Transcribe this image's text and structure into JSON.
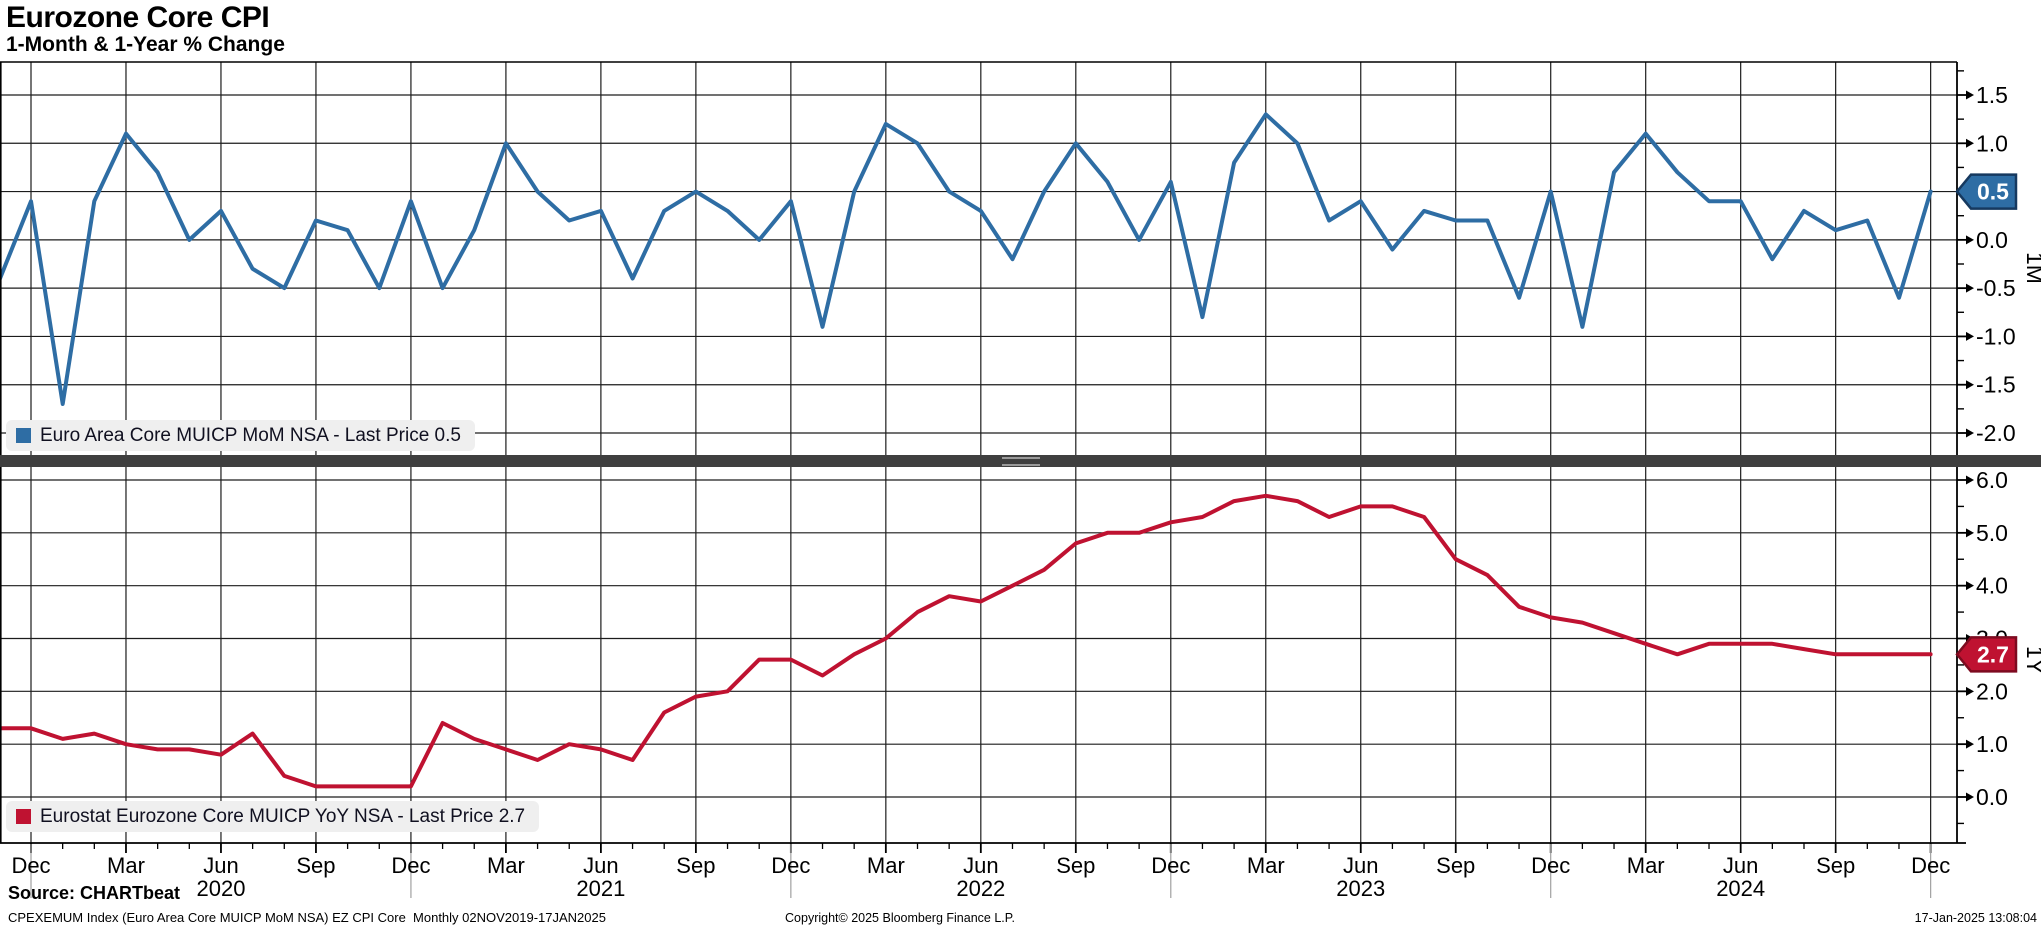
{
  "header": {
    "title": "Eurozone Core CPI",
    "subtitle": "1-Month & 1-Year % Change"
  },
  "colors": {
    "blue_line": "#2e6da4",
    "blue_tag_border": "#16395f",
    "red_line": "#bf1231",
    "red_tag_border": "#7d0b20",
    "grid": "#1c1c1c",
    "axis": "#000000",
    "legend_bg": "#efefef",
    "separator": "#3f3f3f",
    "separator_grip": "#9a9a9a",
    "year_divider": "#a0a0a0",
    "tag_text": "#ffffff"
  },
  "panels": {
    "top": {
      "legend": "Euro Area Core MUICP MoM NSA - Last Price 0.5",
      "axis_label": "1M",
      "last_price_tag": "0.5",
      "ytick_labels": [
        "1.5",
        "1.0",
        "0.5",
        "0.0",
        "-0.5",
        "-1.0",
        "-1.5",
        "-2.0"
      ]
    },
    "bottom": {
      "legend": "Eurostat Eurozone Core MUICP YoY NSA - Last Price 2.7",
      "axis_label": "1Y",
      "last_price_tag": "2.7",
      "ytick_labels": [
        "6.0",
        "5.0",
        "4.0",
        "3.0",
        "2.0",
        "1.0",
        "0.0"
      ]
    }
  },
  "footer": {
    "source": "Source: CHARTbeat",
    "left": "CPEXEMUM Index (Euro Area Core MUICP MoM NSA) EZ CPI Core  Monthly 02NOV2019-17JAN2025",
    "center": "Copyright© 2025 Bloomberg Finance L.P.",
    "right": "17-Jan-2025 13:08:04"
  },
  "chart_data": {
    "type": "line",
    "title": "Eurozone Core CPI",
    "subtitle": "1-Month & 1-Year % Change",
    "frequency": "monthly",
    "date_range": "02NOV2019-17JAN2025",
    "grid": true,
    "months": [
      "2019-11",
      "2019-12",
      "2020-01",
      "2020-02",
      "2020-03",
      "2020-04",
      "2020-05",
      "2020-06",
      "2020-07",
      "2020-08",
      "2020-09",
      "2020-10",
      "2020-11",
      "2020-12",
      "2021-01",
      "2021-02",
      "2021-03",
      "2021-04",
      "2021-05",
      "2021-06",
      "2021-07",
      "2021-08",
      "2021-09",
      "2021-10",
      "2021-11",
      "2021-12",
      "2022-01",
      "2022-02",
      "2022-03",
      "2022-04",
      "2022-05",
      "2022-06",
      "2022-07",
      "2022-08",
      "2022-09",
      "2022-10",
      "2022-11",
      "2022-12",
      "2023-01",
      "2023-02",
      "2023-03",
      "2023-04",
      "2023-05",
      "2023-06",
      "2023-07",
      "2023-08",
      "2023-09",
      "2023-10",
      "2023-11",
      "2023-12",
      "2024-01",
      "2024-02",
      "2024-03",
      "2024-04",
      "2024-05",
      "2024-06",
      "2024-07",
      "2024-08",
      "2024-09",
      "2024-10",
      "2024-11",
      "2024-12"
    ],
    "x_tick_labels": [
      "Dec",
      "Mar",
      "Jun",
      "Sep",
      "Dec",
      "Mar",
      "Jun",
      "Sep",
      "Dec",
      "Mar",
      "Jun",
      "Sep",
      "Dec",
      "Mar",
      "Jun",
      "Sep",
      "Dec",
      "Mar",
      "Jun",
      "Sep",
      "Dec"
    ],
    "year_labels": [
      "2020",
      "2021",
      "2022",
      "2023",
      "2024"
    ],
    "series": [
      {
        "name": "Euro Area Core MUICP MoM NSA",
        "panel": "top",
        "panel_axis_label": "1M",
        "color": "#2e6da4",
        "last_price": 0.5,
        "ylim": [
          -2.2,
          1.84
        ],
        "yticks_major": [
          1.5,
          1.0,
          0.5,
          0.0,
          -0.5,
          -1.0,
          -1.5,
          -2.0
        ],
        "values": [
          -0.4,
          0.4,
          -1.7,
          0.4,
          1.1,
          0.7,
          0.0,
          0.3,
          -0.3,
          -0.5,
          0.2,
          0.1,
          -0.5,
          0.4,
          -0.5,
          0.1,
          1.0,
          0.5,
          0.2,
          0.3,
          -0.4,
          0.3,
          0.5,
          0.3,
          0.0,
          0.4,
          -0.9,
          0.5,
          1.2,
          1.0,
          0.5,
          0.3,
          -0.2,
          0.5,
          1.0,
          0.6,
          0.0,
          0.6,
          -0.8,
          0.8,
          1.3,
          1.0,
          0.2,
          0.4,
          -0.1,
          0.3,
          0.2,
          0.2,
          -0.6,
          0.5,
          -0.9,
          0.7,
          1.1,
          0.7,
          0.4,
          0.4,
          -0.2,
          0.3,
          0.1,
          0.2,
          -0.6,
          0.5
        ]
      },
      {
        "name": "Eurostat Eurozone Core MUICP YoY NSA",
        "panel": "bottom",
        "panel_axis_label": "1Y",
        "color": "#bf1231",
        "last_price": 2.7,
        "ylim": [
          -0.9,
          6.3
        ],
        "yticks_major": [
          6.0,
          5.0,
          4.0,
          3.0,
          2.0,
          1.0,
          0.0
        ],
        "values": [
          1.3,
          1.3,
          1.1,
          1.2,
          1.0,
          0.9,
          0.9,
          0.8,
          1.2,
          0.4,
          0.2,
          0.2,
          0.2,
          0.2,
          1.4,
          1.1,
          0.9,
          0.7,
          1.0,
          0.9,
          0.7,
          1.6,
          1.9,
          2.0,
          2.6,
          2.6,
          2.3,
          2.7,
          3.0,
          3.5,
          3.8,
          3.7,
          4.0,
          4.3,
          4.8,
          5.0,
          5.0,
          5.2,
          5.3,
          5.6,
          5.7,
          5.6,
          5.3,
          5.5,
          5.5,
          5.3,
          4.5,
          4.2,
          3.6,
          3.4,
          3.3,
          3.1,
          2.9,
          2.7,
          2.9,
          2.9,
          2.9,
          2.8,
          2.7,
          2.7,
          2.7,
          2.7
        ]
      }
    ]
  }
}
